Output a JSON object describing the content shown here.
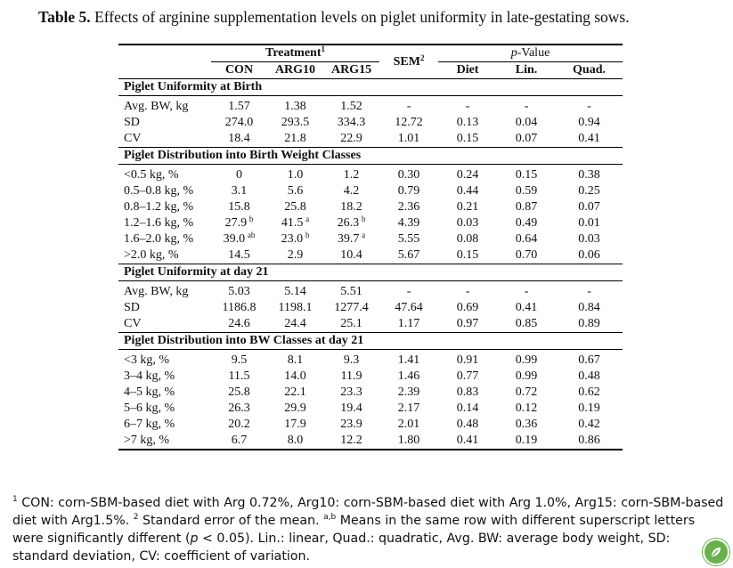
{
  "caption": {
    "label": "Table 5.",
    "text": " Effects of arginine supplementation levels on piglet uniformity in late-gestating sows."
  },
  "header": {
    "treatment": "Treatment",
    "treatment_sup": "1",
    "sem": "SEM",
    "sem_sup": "2",
    "pvalue_p": "p",
    "pvalue_rest": "-Value",
    "cols": [
      "CON",
      "ARG10",
      "ARG15"
    ],
    "pcols": [
      "Diet",
      "Lin.",
      "Quad."
    ]
  },
  "sections": [
    {
      "title": "Piglet Uniformity at Birth",
      "rows": [
        {
          "label": "Avg. BW, kg",
          "v": [
            "1.57",
            "1.38",
            "1.52",
            "-",
            "-",
            "-",
            "-"
          ],
          "s": [
            "",
            "",
            "",
            "",
            "",
            "",
            ""
          ]
        },
        {
          "label": "SD",
          "v": [
            "274.0",
            "293.5",
            "334.3",
            "12.72",
            "0.13",
            "0.04",
            "0.94"
          ],
          "s": [
            "",
            "",
            "",
            "",
            "",
            "",
            ""
          ]
        },
        {
          "label": "CV",
          "v": [
            "18.4",
            "21.8",
            "22.9",
            "1.01",
            "0.15",
            "0.07",
            "0.41"
          ],
          "s": [
            "",
            "",
            "",
            "",
            "",
            "",
            ""
          ]
        }
      ]
    },
    {
      "title": "Piglet Distribution into Birth Weight Classes",
      "rows": [
        {
          "label": "<0.5 kg, %",
          "v": [
            "0",
            "1.0",
            "1.2",
            "0.30",
            "0.24",
            "0.15",
            "0.38"
          ],
          "s": [
            "",
            "",
            "",
            "",
            "",
            "",
            ""
          ]
        },
        {
          "label": "0.5–0.8 kg, %",
          "v": [
            "3.1",
            "5.6",
            "4.2",
            "0.79",
            "0.44",
            "0.59",
            "0.25"
          ],
          "s": [
            "",
            "",
            "",
            "",
            "",
            "",
            ""
          ]
        },
        {
          "label": "0.8–1.2 kg, %",
          "v": [
            "15.8",
            "25.8",
            "18.2",
            "2.36",
            "0.21",
            "0.87",
            "0.07"
          ],
          "s": [
            "",
            "",
            "",
            "",
            "",
            "",
            ""
          ]
        },
        {
          "label": "1.2–1.6 kg, %",
          "v": [
            "27.9",
            "41.5",
            "26.3",
            "4.39",
            "0.03",
            "0.49",
            "0.01"
          ],
          "s": [
            "b",
            "a",
            "b",
            "",
            "",
            "",
            ""
          ]
        },
        {
          "label": "1.6–2.0 kg, %",
          "v": [
            "39.0",
            "23.0",
            "39.7",
            "5.55",
            "0.08",
            "0.64",
            "0.03"
          ],
          "s": [
            "ab",
            "b",
            "a",
            "",
            "",
            "",
            ""
          ]
        },
        {
          "label": ">2.0 kg, %",
          "v": [
            "14.5",
            "2.9",
            "10.4",
            "5.67",
            "0.15",
            "0.70",
            "0.06"
          ],
          "s": [
            "",
            "",
            "",
            "",
            "",
            "",
            ""
          ]
        }
      ]
    },
    {
      "title": "Piglet Uniformity at day 21",
      "rows": [
        {
          "label": "Avg. BW, kg",
          "v": [
            "5.03",
            "5.14",
            "5.51",
            "-",
            "-",
            "-",
            "-"
          ],
          "s": [
            "",
            "",
            "",
            "",
            "",
            "",
            ""
          ]
        },
        {
          "label": "SD",
          "v": [
            "1186.8",
            "1198.1",
            "1277.4",
            "47.64",
            "0.69",
            "0.41",
            "0.84"
          ],
          "s": [
            "",
            "",
            "",
            "",
            "",
            "",
            ""
          ]
        },
        {
          "label": "CV",
          "v": [
            "24.6",
            "24.4",
            "25.1",
            "1.17",
            "0.97",
            "0.85",
            "0.89"
          ],
          "s": [
            "",
            "",
            "",
            "",
            "",
            "",
            ""
          ]
        }
      ]
    },
    {
      "title": "Piglet Distribution into BW Classes at day 21",
      "rows": [
        {
          "label": "<3 kg, %",
          "v": [
            "9.5",
            "8.1",
            "9.3",
            "1.41",
            "0.91",
            "0.99",
            "0.67"
          ],
          "s": [
            "",
            "",
            "",
            "",
            "",
            "",
            ""
          ]
        },
        {
          "label": "3–4 kg, %",
          "v": [
            "11.5",
            "14.0",
            "11.9",
            "1.46",
            "0.77",
            "0.99",
            "0.48"
          ],
          "s": [
            "",
            "",
            "",
            "",
            "",
            "",
            ""
          ]
        },
        {
          "label": "4–5 kg, %",
          "v": [
            "25.8",
            "22.1",
            "23.3",
            "2.39",
            "0.83",
            "0.72",
            "0.62"
          ],
          "s": [
            "",
            "",
            "",
            "",
            "",
            "",
            ""
          ]
        },
        {
          "label": "5–6 kg, %",
          "v": [
            "26.3",
            "29.9",
            "19.4",
            "2.17",
            "0.14",
            "0.12",
            "0.19"
          ],
          "s": [
            "",
            "",
            "",
            "",
            "",
            "",
            ""
          ]
        },
        {
          "label": "6–7 kg, %",
          "v": [
            "20.2",
            "17.9",
            "23.9",
            "2.01",
            "0.48",
            "0.36",
            "0.42"
          ],
          "s": [
            "",
            "",
            "",
            "",
            "",
            "",
            ""
          ]
        },
        {
          "label": ">7 kg, %",
          "v": [
            "6.7",
            "8.0",
            "12.2",
            "1.80",
            "0.41",
            "0.19",
            "0.86"
          ],
          "s": [
            "",
            "",
            "",
            "",
            "",
            "",
            ""
          ]
        }
      ]
    }
  ],
  "footnote": {
    "sup1": "1",
    "t1": " CON: corn-SBM-based diet with Arg 0.72%, Arg10: corn-SBM-based diet with Arg 1.0%, Arg15: corn-SBM-based diet with Arg1.5%. ",
    "sup2": "2",
    "t2": " Standard error of the mean. ",
    "sup3": "a,b",
    "t3": " Means in the same row with different superscript letters were significantly different (",
    "pital": "p",
    "t4": " < 0.05). Lin.: linear, Quad.: quadratic, Avg. BW: average body weight, SD: standard deviation, CV: coefficient of variation."
  },
  "icons": {
    "badge": "leaf-badge-icon",
    "badge_color": "#6ab04c"
  }
}
